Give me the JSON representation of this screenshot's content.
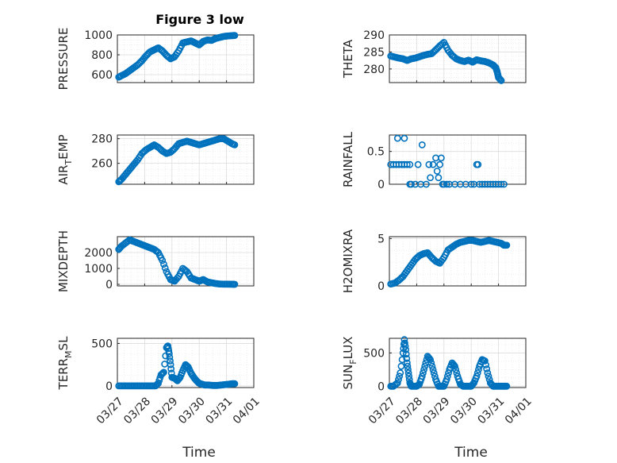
{
  "figure": {
    "title": "Figure 3 low",
    "marker_color": "#0072bd"
  },
  "chart_data": [
    {
      "id": "pressure",
      "type": "scatter",
      "ylabel": "PRESSURE",
      "xlim": [
        0,
        5
      ],
      "ylim": [
        520,
        1000
      ],
      "yticks": [
        600,
        800,
        1000
      ],
      "x_tick_labels": [
        "03/27",
        "03/28",
        "03/29",
        "03/30",
        "03/31",
        "04/01"
      ],
      "x": [
        0.05,
        0.15,
        0.3,
        0.45,
        0.6,
        0.75,
        0.9,
        1.05,
        1.2,
        1.35,
        1.5,
        1.65,
        1.8,
        1.95,
        2.1,
        2.25,
        2.4,
        2.55,
        2.7,
        2.85,
        3.0,
        3.15,
        3.3,
        3.45,
        3.6,
        3.75,
        3.9,
        4.05,
        4.2,
        4.3
      ],
      "y": [
        575,
        590,
        610,
        640,
        670,
        700,
        740,
        790,
        830,
        850,
        870,
        840,
        795,
        760,
        780,
        840,
        920,
        930,
        940,
        920,
        900,
        935,
        950,
        945,
        965,
        975,
        985,
        990,
        993,
        995
      ]
    },
    {
      "id": "theta",
      "type": "scatter",
      "ylabel": "THETA",
      "xlim": [
        0,
        5
      ],
      "ylim": [
        276,
        290
      ],
      "yticks": [
        280,
        285,
        290
      ],
      "x_tick_labels": [
        "03/27",
        "03/28",
        "03/29",
        "03/30",
        "03/31",
        "04/01"
      ],
      "x": [
        0.05,
        0.2,
        0.35,
        0.5,
        0.65,
        0.8,
        0.95,
        1.1,
        1.25,
        1.4,
        1.55,
        1.7,
        1.85,
        2.0,
        2.15,
        2.3,
        2.45,
        2.6,
        2.75,
        2.9,
        3.05,
        3.2,
        3.35,
        3.5,
        3.65,
        3.8,
        3.9,
        3.95,
        4.0,
        4.1
      ],
      "y": [
        283.8,
        283.5,
        283.2,
        283,
        282.5,
        283,
        283.2,
        283.6,
        284.0,
        284.3,
        284.5,
        285.6,
        286.8,
        287.8,
        285.5,
        284.0,
        283.0,
        282.5,
        282.2,
        282.6,
        282.0,
        282.7,
        282.4,
        282.2,
        281.8,
        281.2,
        280.4,
        279.2,
        277.5,
        276.6
      ]
    },
    {
      "id": "air_temp",
      "type": "scatter",
      "ylabel": "AIR_TEMP",
      "xlim": [
        0,
        5
      ],
      "ylim": [
        243,
        283
      ],
      "yticks": [
        260,
        280
      ],
      "x_tick_labels": [
        "03/27",
        "03/28",
        "03/29",
        "03/30",
        "03/31",
        "04/01"
      ],
      "x": [
        0.05,
        0.15,
        0.3,
        0.45,
        0.6,
        0.75,
        0.9,
        1.05,
        1.2,
        1.35,
        1.5,
        1.65,
        1.8,
        1.95,
        2.1,
        2.25,
        2.4,
        2.55,
        2.7,
        2.85,
        3.0,
        3.15,
        3.3,
        3.45,
        3.6,
        3.75,
        3.9,
        4.05,
        4.2,
        4.3
      ],
      "y": [
        245,
        247,
        251,
        255,
        259,
        263,
        268,
        271,
        273,
        275,
        273,
        270,
        268,
        269,
        272,
        276,
        277,
        278,
        277,
        276,
        275,
        276,
        277,
        278,
        279,
        280,
        280,
        278,
        276,
        275
      ]
    },
    {
      "id": "rainfall",
      "type": "scatter",
      "ylabel": "RAINFALL",
      "xlim": [
        0,
        5
      ],
      "ylim": [
        0,
        0.75
      ],
      "yticks": [
        0,
        0.5
      ],
      "x_tick_labels": [
        "03/27",
        "03/28",
        "03/29",
        "03/30",
        "03/31",
        "04/01"
      ],
      "x": [
        0.05,
        0.15,
        0.25,
        0.35,
        0.45,
        0.55,
        0.65,
        0.75,
        0.3,
        0.55,
        0.75,
        0.8,
        0.95,
        1.05,
        1.15,
        1.2,
        1.35,
        1.45,
        1.5,
        1.6,
        1.7,
        1.75,
        1.8,
        1.85,
        1.9,
        1.95,
        2.0,
        2.1,
        2.2,
        2.4,
        2.6,
        2.8,
        3.0,
        3.1,
        3.2,
        3.25,
        3.3,
        3.4,
        3.5,
        3.6,
        3.7,
        3.8,
        3.9,
        4.0,
        4.1,
        4.2
      ],
      "y": [
        0.3,
        0.3,
        0.3,
        0.3,
        0.3,
        0.3,
        0.3,
        0.3,
        0.7,
        0.7,
        0,
        0,
        0,
        0.3,
        0,
        0.6,
        0,
        0.3,
        0.1,
        0.3,
        0.4,
        0.2,
        0.1,
        0.3,
        0.4,
        0,
        0,
        0,
        0,
        0,
        0,
        0,
        0,
        0,
        0.3,
        0.3,
        0,
        0,
        0,
        0,
        0,
        0,
        0,
        0,
        0,
        0
      ]
    },
    {
      "id": "mixdepth",
      "type": "scatter",
      "ylabel": "MIXDEPTH",
      "xlim": [
        0,
        5
      ],
      "ylim": [
        -100,
        3000
      ],
      "yticks": [
        0,
        1000,
        2000
      ],
      "x_tick_labels": [
        "03/27",
        "03/28",
        "03/29",
        "03/30",
        "03/31",
        "04/01"
      ],
      "x": [
        0.05,
        0.15,
        0.3,
        0.45,
        0.6,
        0.75,
        0.9,
        1.05,
        1.2,
        1.35,
        1.5,
        1.65,
        1.8,
        1.95,
        2.1,
        2.25,
        2.4,
        2.55,
        2.7,
        2.85,
        3.0,
        3.15,
        3.3,
        3.45,
        3.6,
        3.75,
        3.9,
        4.05,
        4.2,
        4.3
      ],
      "y": [
        2200,
        2400,
        2600,
        2800,
        2700,
        2600,
        2500,
        2400,
        2300,
        2200,
        2000,
        1500,
        800,
        300,
        200,
        500,
        1000,
        800,
        400,
        300,
        200,
        300,
        150,
        100,
        50,
        20,
        10,
        10,
        5,
        0
      ]
    },
    {
      "id": "h2omixra",
      "type": "scatter",
      "ylabel": "H2OMIXRA",
      "xlim": [
        0,
        5
      ],
      "ylim": [
        0,
        5.2
      ],
      "yticks": [
        0,
        5
      ],
      "x_tick_labels": [
        "03/27",
        "03/28",
        "03/29",
        "03/30",
        "03/31",
        "04/01"
      ],
      "x": [
        0.05,
        0.2,
        0.35,
        0.5,
        0.65,
        0.8,
        0.95,
        1.1,
        1.25,
        1.4,
        1.55,
        1.7,
        1.85,
        2.0,
        2.15,
        2.3,
        2.45,
        2.6,
        2.75,
        2.9,
        3.05,
        3.2,
        3.35,
        3.5,
        3.65,
        3.8,
        3.95,
        4.1,
        4.2,
        4.3
      ],
      "y": [
        0.2,
        0.3,
        0.6,
        1.0,
        1.6,
        2.2,
        2.8,
        3.2,
        3.4,
        3.5,
        3.0,
        2.6,
        2.4,
        3.0,
        3.8,
        4.1,
        4.4,
        4.6,
        4.7,
        4.8,
        4.8,
        4.7,
        4.6,
        4.7,
        4.8,
        4.7,
        4.6,
        4.5,
        4.3,
        4.3
      ]
    },
    {
      "id": "terr_msl",
      "type": "scatter",
      "ylabel": "TERR_MSL",
      "xlim": [
        0,
        5
      ],
      "ylim": [
        -20,
        560
      ],
      "yticks": [
        0,
        500
      ],
      "x_tick_labels": [
        "03/27",
        "03/28",
        "03/29",
        "03/30",
        "03/31",
        "04/01"
      ],
      "x": [
        0.05,
        0.2,
        0.35,
        0.5,
        0.65,
        0.8,
        0.95,
        1.1,
        1.25,
        1.4,
        1.5,
        1.6,
        1.7,
        1.8,
        1.85,
        1.9,
        1.95,
        2.0,
        2.1,
        2.2,
        2.3,
        2.4,
        2.5,
        2.6,
        2.7,
        2.8,
        2.9,
        3.0,
        3.1,
        3.2,
        3.35,
        3.5,
        3.65,
        3.8,
        3.95,
        4.1,
        4.2,
        4.3
      ],
      "y": [
        0,
        0,
        0,
        0,
        0,
        0,
        0,
        0,
        0,
        0,
        30,
        130,
        160,
        450,
        470,
        380,
        250,
        100,
        90,
        60,
        100,
        180,
        250,
        220,
        150,
        100,
        60,
        30,
        20,
        10,
        10,
        5,
        5,
        10,
        15,
        20,
        25,
        25
      ]
    },
    {
      "id": "sun_flux",
      "type": "scatter",
      "ylabel": "SUN_FLUX",
      "xlim": [
        0,
        5
      ],
      "ylim": [
        -20,
        720
      ],
      "yticks": [
        0,
        500
      ],
      "x_tick_labels": [
        "03/27",
        "03/28",
        "03/29",
        "03/30",
        "03/31",
        "04/01"
      ],
      "x": [
        0.05,
        0.15,
        0.3,
        0.4,
        0.5,
        0.55,
        0.6,
        0.65,
        0.7,
        0.75,
        0.8,
        0.9,
        1.0,
        1.1,
        1.2,
        1.3,
        1.4,
        1.5,
        1.6,
        1.7,
        1.8,
        1.9,
        2.0,
        2.1,
        2.2,
        2.3,
        2.4,
        2.5,
        2.6,
        2.7,
        2.8,
        2.9,
        3.0,
        3.1,
        3.2,
        3.3,
        3.4,
        3.5,
        3.6,
        3.7,
        3.8,
        3.9,
        4.0,
        4.1,
        4.2,
        4.3
      ],
      "y": [
        0,
        0,
        50,
        200,
        500,
        700,
        550,
        350,
        200,
        50,
        0,
        0,
        0,
        30,
        150,
        300,
        450,
        400,
        250,
        100,
        0,
        0,
        0,
        100,
        250,
        350,
        300,
        150,
        30,
        0,
        0,
        0,
        0,
        50,
        150,
        300,
        400,
        380,
        200,
        50,
        0,
        0,
        0,
        0,
        0,
        0
      ]
    }
  ],
  "axes_labels": {
    "air_temp_main": "AIR",
    "air_temp_sub": "T",
    "air_temp_rest": "EMP",
    "terr_main": "TERR",
    "terr_sub": "M",
    "terr_rest": "SL",
    "sun_main": "SUN",
    "sun_sub": "F",
    "sun_rest": "LUX",
    "xlabel_left": "Time",
    "xlabel_right": "Time"
  }
}
